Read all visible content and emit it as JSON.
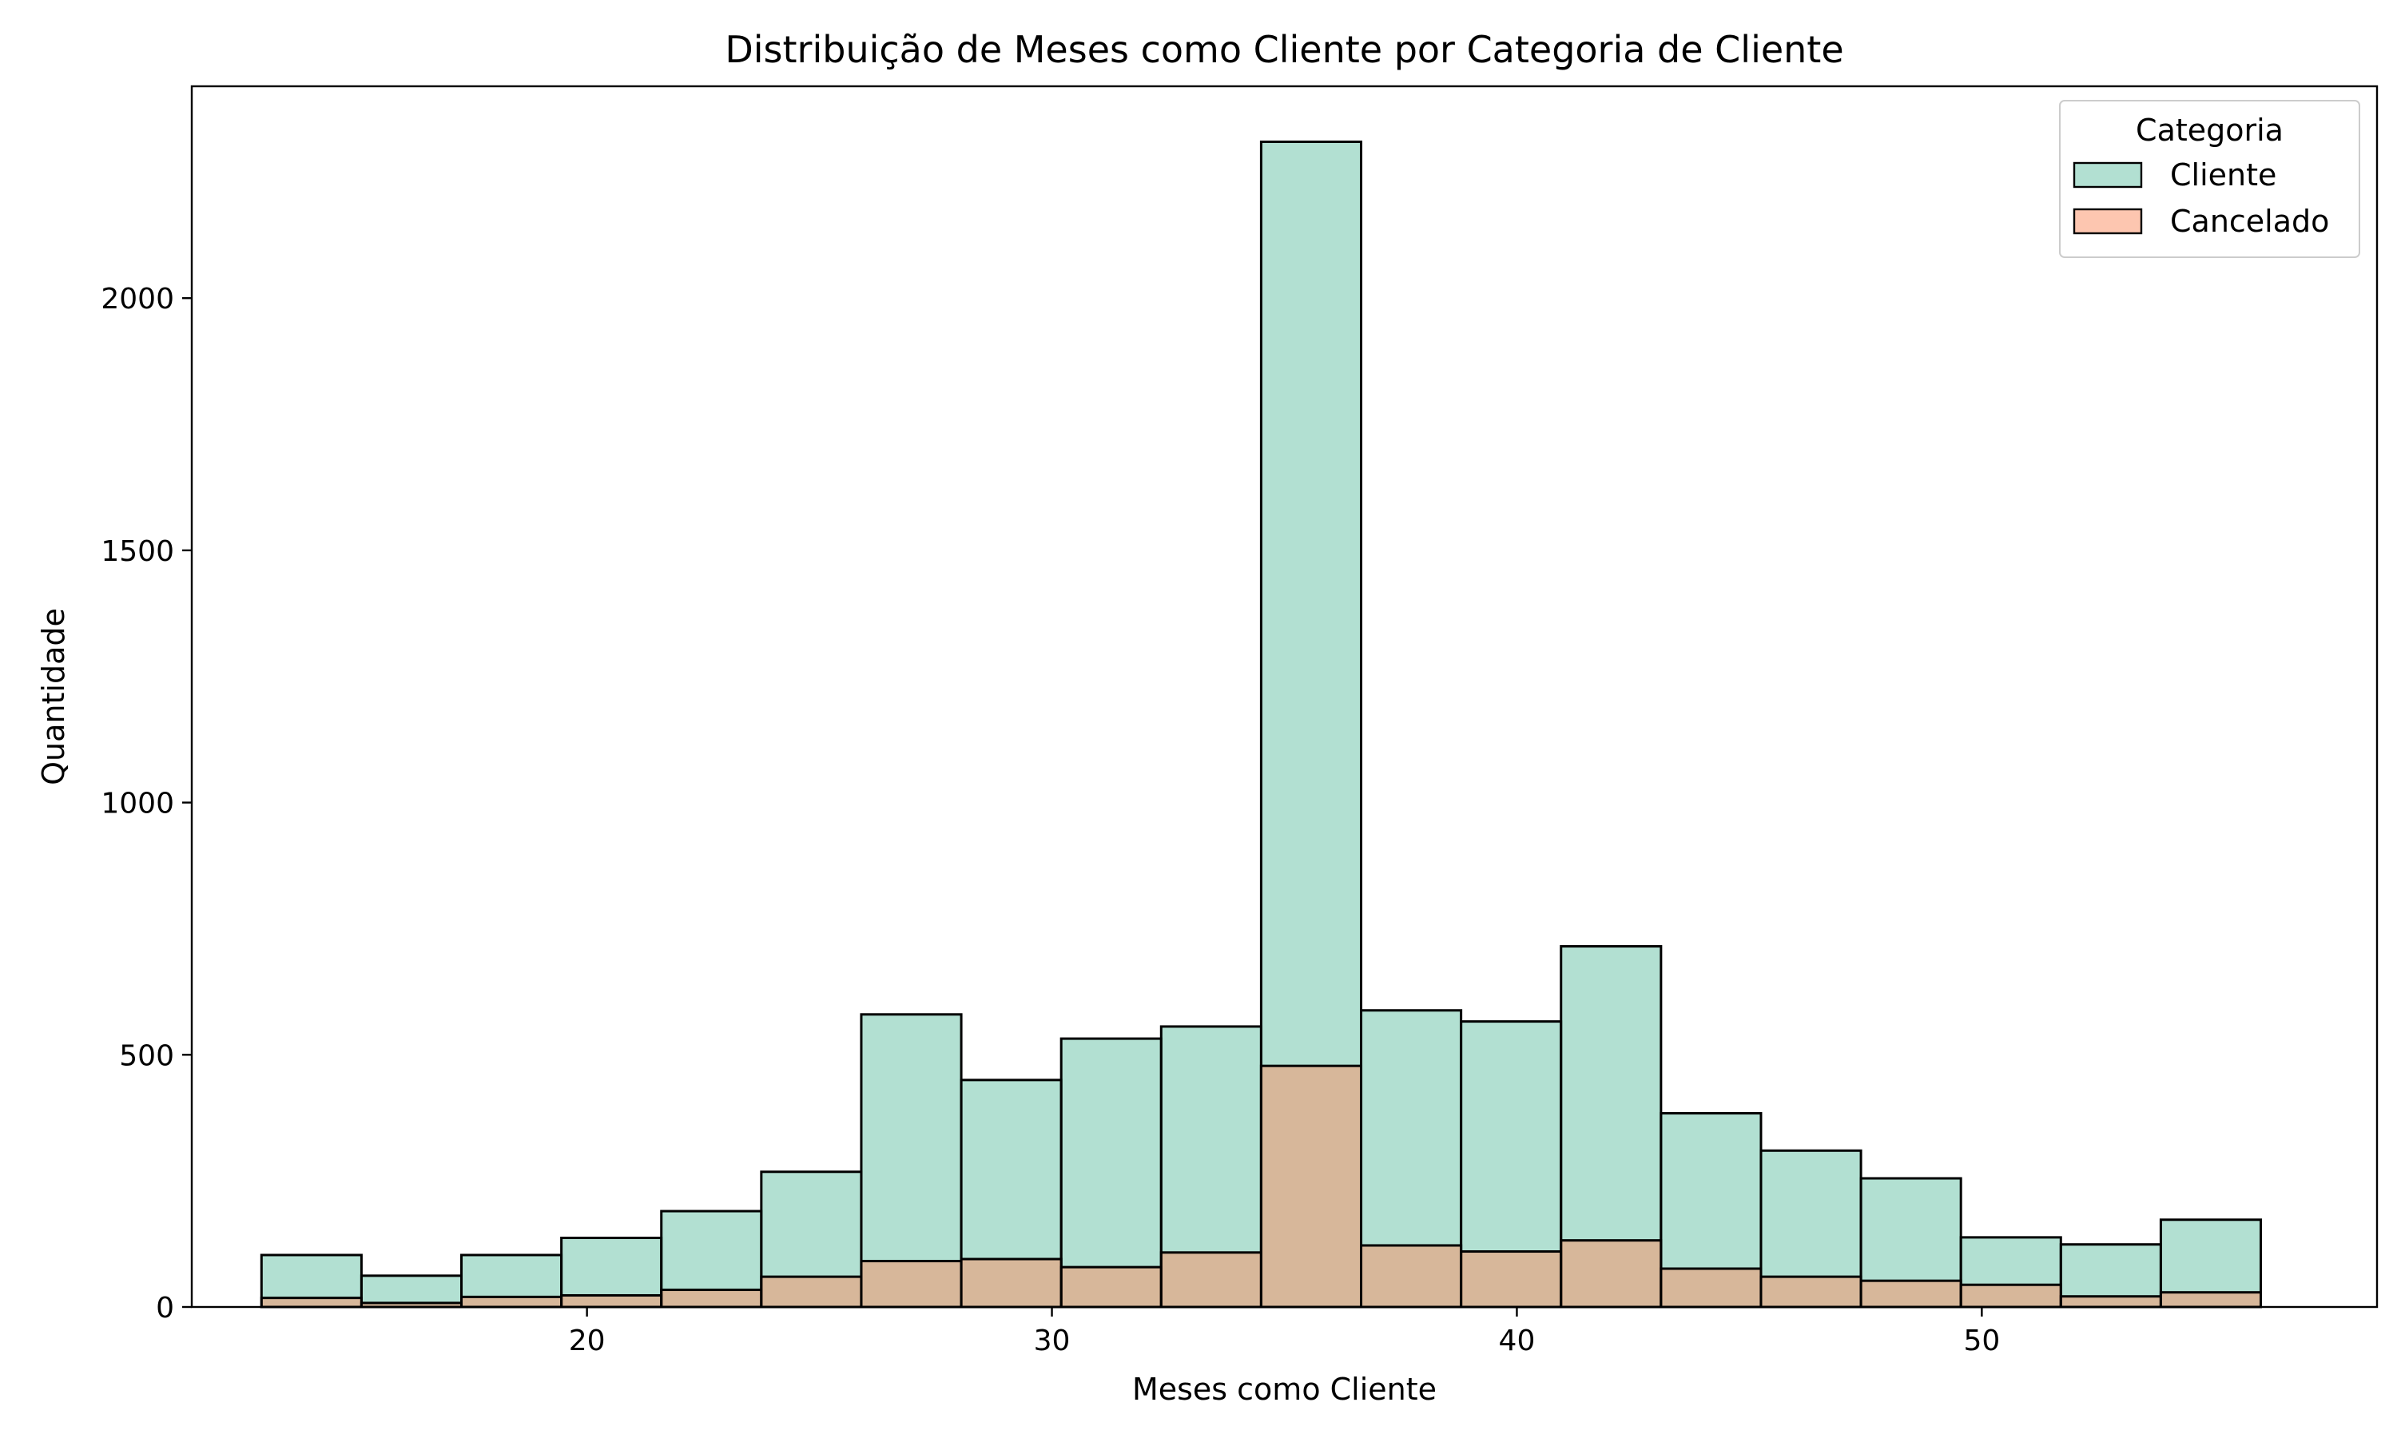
{
  "chart_data": {
    "type": "bar",
    "title": "Distribuição de Meses como Cliente por Categoria de Cliente",
    "xlabel": "Meses como Cliente",
    "ylabel": "Quantidade",
    "xlim": [
      11.5,
      58.5
    ],
    "ylim": [
      0,
      2420
    ],
    "xticks": [
      20,
      30,
      40,
      50
    ],
    "yticks": [
      0,
      500,
      1000,
      1500,
      2000
    ],
    "grid": false,
    "bin_edges": [
      13,
      15.15,
      17.3,
      19.45,
      21.6,
      23.75,
      25.9,
      28.05,
      30.2,
      32.35,
      34.5,
      36.65,
      38.8,
      40.95,
      43.1,
      45.25,
      47.4,
      49.55,
      51.7,
      53.85,
      56
    ],
    "series": [
      {
        "name": "Cliente",
        "color": "#66c2a5",
        "values": [
          103,
          62,
          103,
          137,
          190,
          268,
          580,
          450,
          532,
          556,
          2310,
          588,
          566,
          715,
          384,
          310,
          255,
          138,
          124,
          173
        ]
      },
      {
        "name": "Cancelado",
        "color": "#fc8d62",
        "values": [
          18,
          8,
          20,
          23,
          34,
          60,
          91,
          95,
          79,
          108,
          478,
          122,
          110,
          132,
          76,
          60,
          52,
          44,
          21,
          29
        ]
      }
    ],
    "legend": {
      "title": "Categoria",
      "position": "top-right",
      "entries": [
        "Cliente",
        "Cancelado"
      ]
    }
  }
}
